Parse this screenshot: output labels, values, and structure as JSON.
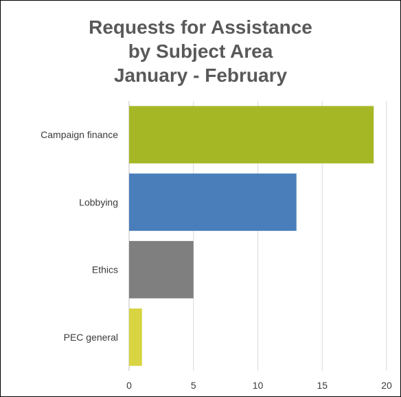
{
  "chart_data": {
    "type": "bar",
    "orientation": "horizontal",
    "title_lines": [
      "Requests for Assistance",
      "by Subject Area",
      "January - February"
    ],
    "categories": [
      "Campaign finance",
      "Lobbying",
      "Ethics",
      "PEC general"
    ],
    "values": [
      19,
      13,
      5,
      1
    ],
    "colors": [
      "#a6b726",
      "#4a7ebb",
      "#7f7f7f",
      "#d8d442"
    ],
    "xlim": [
      0,
      20
    ],
    "xticks": [
      0,
      5,
      10,
      15,
      20
    ],
    "xtick_labels": [
      "0",
      "5",
      "10",
      "15",
      "20"
    ],
    "grid": "vertical",
    "legend": "none"
  }
}
